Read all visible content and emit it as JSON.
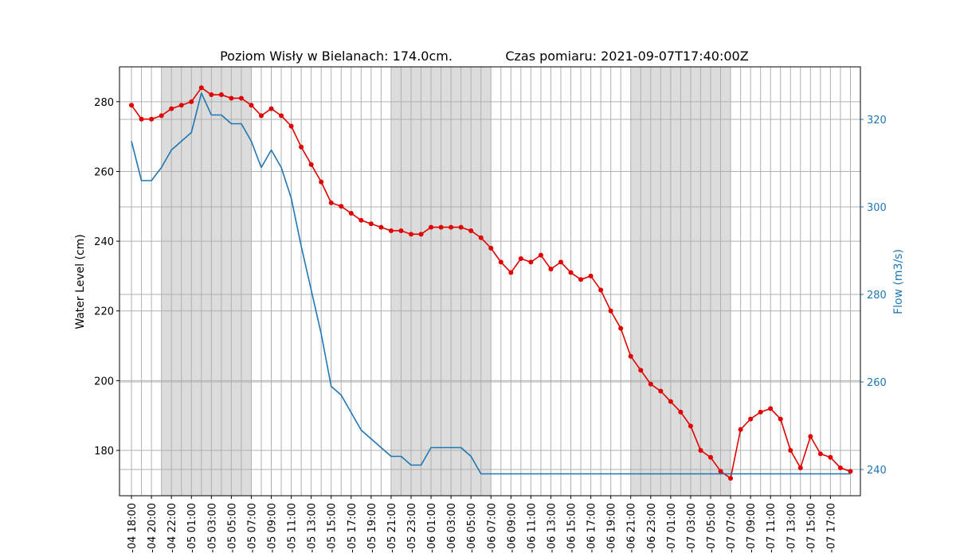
{
  "chart_data": {
    "type": "line",
    "title_left": "Poziom Wisły w Bielanach: 174.0cm.",
    "title_right": "Czas pomiaru: 2021-09-07T17:40:00Z",
    "ylabel_left": "Water Level (cm)",
    "ylabel_right": "Flow (m3/s)",
    "ylim_left": [
      167,
      290
    ],
    "ylim_right": [
      234,
      332
    ],
    "yticks_left": [
      180,
      200,
      220,
      240,
      260,
      280
    ],
    "yticks_right": [
      240,
      260,
      280,
      300,
      320
    ],
    "grid": true,
    "xlim": [
      -1.2,
      73.0
    ],
    "xtick_labels": [
      "-04 18:00",
      "-04 20:00",
      "-04 22:00",
      "-05 01:00",
      "-05 03:00",
      "-05 05:00",
      "-05 07:00",
      "-05 09:00",
      "-05 11:00",
      "-05 13:00",
      "-05 15:00",
      "-05 17:00",
      "-05 19:00",
      "-05 21:00",
      "-05 23:00",
      "-06 01:00",
      "-06 03:00",
      "-06 05:00",
      "-06 07:00",
      "-06 09:00",
      "-06 11:00",
      "-06 13:00",
      "-06 15:00",
      "-06 17:00",
      "-06 19:00",
      "-06 21:00",
      "-06 23:00",
      "-07 01:00",
      "-07 03:00",
      "-07 05:00",
      "-07 07:00",
      "-07 09:00",
      "-07 11:00",
      "-07 13:00",
      "-07 15:00",
      "-07 17:00"
    ],
    "shaded_ranges": [
      [
        3,
        12
      ],
      [
        26,
        36
      ],
      [
        50,
        60
      ]
    ],
    "series": [
      {
        "name": "Water Level (cm)",
        "axis": "left",
        "color": "#e00000",
        "marker": "circle",
        "values": [
          279,
          275,
          275,
          276,
          278,
          279,
          280,
          284,
          282,
          282,
          281,
          281,
          279,
          276,
          278,
          276,
          273,
          267,
          262,
          257,
          251,
          250,
          248,
          246,
          245,
          244,
          243,
          243,
          242,
          242,
          244,
          244,
          244,
          244,
          243,
          241,
          238,
          234,
          231,
          235,
          234,
          236,
          232,
          234,
          231,
          229,
          230,
          226,
          220,
          215,
          207,
          203,
          199,
          197,
          194,
          191,
          187,
          180,
          178,
          174,
          172,
          186,
          189,
          191,
          192,
          189,
          180,
          175,
          184,
          179,
          178,
          175,
          174
        ]
      },
      {
        "name": "Flow (m3/s)",
        "axis": "right",
        "color": "#1f77b4",
        "marker": "none",
        "values": [
          315,
          306,
          306,
          309,
          313,
          315,
          317,
          326,
          321,
          321,
          319,
          319,
          315,
          309,
          313,
          309,
          302,
          291,
          281,
          271,
          259,
          257,
          253,
          249,
          247,
          245,
          243,
          243,
          241,
          241,
          245,
          245,
          245,
          245,
          243,
          239,
          239,
          239,
          239,
          239,
          239,
          239,
          239,
          239,
          239,
          239,
          239,
          239,
          239,
          239,
          239,
          239,
          239,
          239,
          239,
          239,
          239,
          239,
          239,
          239,
          239,
          239,
          239,
          239,
          239,
          239,
          239,
          239,
          239,
          239,
          239,
          239,
          239
        ]
      }
    ]
  }
}
